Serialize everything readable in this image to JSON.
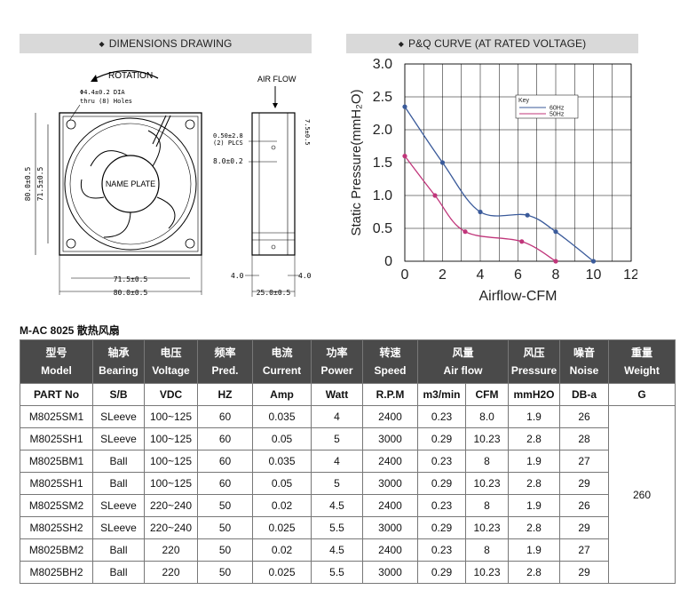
{
  "dimensions_panel": {
    "title": "DIMENSIONS DRAWING",
    "rotation_label": "ROTATION",
    "holes_label_1": "Φ4.4±0.2 DIA",
    "holes_label_2": "thru (8) Holes",
    "name_plate": "NAME PLATE",
    "dim_80_height": "80.0±0.5",
    "dim_715_height": "71.5±0.5",
    "dim_715_width": "71.5±0.5",
    "dim_80_width": "80.0±0.5",
    "airflow_label": "AIR FLOW",
    "dim_050_1": "0.50±2.8",
    "dim_050_2": "(2) PLCS",
    "dim_75": "7.5±0.5",
    "dim_8": "8.0±0.2",
    "dim_4_left": "4.0",
    "dim_4_right": "4.0",
    "dim_25": "25.0±0.5"
  },
  "pq_panel": {
    "title": "P&Q CURVE (AT RATED VOLTAGE)"
  },
  "chart_data": {
    "type": "line",
    "title": "",
    "xlabel": "Airflow-CFM",
    "ylabel": "Static Pressure(mmH₂O)",
    "xlim": [
      0,
      12
    ],
    "ylim": [
      0,
      3.0
    ],
    "x_ticks": [
      "0",
      "2",
      "4",
      "6",
      "8",
      "10",
      "12"
    ],
    "y_ticks": [
      "0",
      "0.5",
      "1.0",
      "1.5",
      "2.0",
      "2.5",
      "3.0"
    ],
    "grid": true,
    "legend_title": "Key",
    "legend_position": "top-right",
    "series": [
      {
        "name": "60Hz",
        "color": "#3a5a9a",
        "points": [
          [
            0,
            2.35
          ],
          [
            2,
            1.5
          ],
          [
            4,
            0.75
          ],
          [
            6.5,
            0.7
          ],
          [
            8,
            0.45
          ],
          [
            10,
            0
          ]
        ]
      },
      {
        "name": "50Hz",
        "color": "#c0357a",
        "points": [
          [
            0,
            1.6
          ],
          [
            1.6,
            1.0
          ],
          [
            3.2,
            0.45
          ],
          [
            6.2,
            0.3
          ],
          [
            8,
            0
          ]
        ]
      }
    ]
  },
  "table": {
    "title": "M-AC 8025 散热风扇",
    "header_cn": [
      "型号",
      "轴承",
      "电压",
      "频率",
      "电流",
      "功率",
      "转速",
      "风量",
      "风压",
      "噪音",
      "重量"
    ],
    "header_en": [
      "Model",
      "Bearing",
      "Voltage",
      "Pred.",
      "Current",
      "Power",
      "Speed",
      "Air flow",
      "Pressure",
      "Noise",
      "Weight"
    ],
    "units": [
      "PART No",
      "S/B",
      "VDC",
      "HZ",
      "Amp",
      "Watt",
      "R.P.M",
      "m3/min",
      "CFM",
      "mmH2O",
      "DB-a",
      "G"
    ],
    "weight": "260",
    "rows": [
      [
        "M8025SM1",
        "SLeeve",
        "100~125",
        "60",
        "0.035",
        "4",
        "2400",
        "0.23",
        "8.0",
        "1.9",
        "26"
      ],
      [
        "M8025SH1",
        "SLeeve",
        "100~125",
        "60",
        "0.05",
        "5",
        "3000",
        "0.29",
        "10.23",
        "2.8",
        "28"
      ],
      [
        "M8025BM1",
        "Ball",
        "100~125",
        "60",
        "0.035",
        "4",
        "2400",
        "0.23",
        "8",
        "1.9",
        "27"
      ],
      [
        "M8025SH1",
        "Ball",
        "100~125",
        "60",
        "0.05",
        "5",
        "3000",
        "0.29",
        "10.23",
        "2.8",
        "29"
      ],
      [
        "M8025SM2",
        "SLeeve",
        "220~240",
        "50",
        "0.02",
        "4.5",
        "2400",
        "0.23",
        "8",
        "1.9",
        "26"
      ],
      [
        "M8025SH2",
        "SLeeve",
        "220~240",
        "50",
        "0.025",
        "5.5",
        "3000",
        "0.29",
        "10.23",
        "2.8",
        "29"
      ],
      [
        "M8025BM2",
        "Ball",
        "220",
        "50",
        "0.02",
        "4.5",
        "2400",
        "0.23",
        "8",
        "1.9",
        "27"
      ],
      [
        "M8025BH2",
        "Ball",
        "220",
        "50",
        "0.025",
        "5.5",
        "3000",
        "0.29",
        "10.23",
        "2.8",
        "29"
      ]
    ]
  }
}
